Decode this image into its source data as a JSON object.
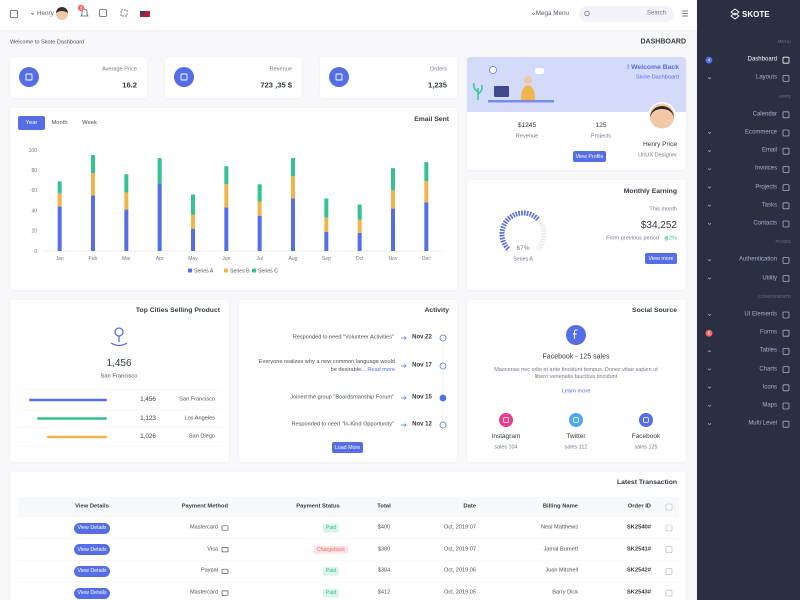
{
  "topbar": {
    "user": "Henry",
    "notifications": "3",
    "mega_menu": "Mega Menu",
    "search_placeholder": ".Search"
  },
  "sidebar": {
    "logo": "SKOTE",
    "sections": [
      {
        "title": "MENU",
        "items": [
          {
            "label": "Dashboard",
            "active": true,
            "badge": "4",
            "badge_color": "#556ee6"
          },
          {
            "label": "Layouts",
            "submenu": true
          }
        ]
      },
      {
        "title": "APPS",
        "items": [
          {
            "label": "Calendar"
          },
          {
            "label": "Ecommerce",
            "submenu": true
          },
          {
            "label": "Email",
            "submenu": true
          },
          {
            "label": "Invoices",
            "submenu": true
          },
          {
            "label": "Projects",
            "submenu": true
          },
          {
            "label": "Tasks",
            "submenu": true
          },
          {
            "label": "Contacts",
            "submenu": true
          }
        ]
      },
      {
        "title": "PAGES",
        "items": [
          {
            "label": "Authentication",
            "submenu": true
          },
          {
            "label": "Utility",
            "submenu": true
          }
        ]
      },
      {
        "title": "COMPONENTS",
        "items": [
          {
            "label": "UI Elements",
            "submenu": true
          },
          {
            "label": "Forms",
            "badge": "6",
            "badge_color": "#f46a6a"
          },
          {
            "label": "Tables",
            "submenu": true
          },
          {
            "label": "Charts",
            "submenu": true
          },
          {
            "label": "Icons",
            "submenu": true
          },
          {
            "label": "Maps",
            "submenu": true
          },
          {
            "label": "Multi Level",
            "submenu": true
          }
        ]
      }
    ]
  },
  "breadcrumb": {
    "text": "Welcome to Skote Dashboard",
    "title": "DASHBOARD"
  },
  "stats": [
    {
      "label": "Average Price",
      "value": "16.2"
    },
    {
      "label": "Revenue",
      "value": "723 ,35 $"
    },
    {
      "label": "Orders",
      "value": "1,235"
    }
  ],
  "welcome": {
    "greeting": "! Welcome Back",
    "subtitle": "Skote Dashboard",
    "figures": [
      {
        "value": "$1245",
        "label": "Revenue"
      },
      {
        "value": "125",
        "label": "Projects"
      }
    ],
    "name": "Henry Price",
    "role": "UI/UX Designer",
    "button": "View Profile"
  },
  "earning": {
    "title": "Monthly Earning",
    "period": "This month",
    "amount": "$34,252",
    "compare": "From previous period",
    "change": "12%",
    "button": "View more"
  },
  "email_tabs": [
    "Year",
    "Month",
    "Week"
  ],
  "chart_data": [
    {
      "type": "bar",
      "stacked": true,
      "title": "Email Sent",
      "categories": [
        "Jan",
        "Feb",
        "Mar",
        "Apr",
        "May",
        "Jun",
        "Jul",
        "Aug",
        "Sep",
        "Oct",
        "Nov",
        "Dec"
      ],
      "series": [
        {
          "name": "Series A",
          "color": "#556ee6",
          "values": [
            44,
            55,
            41,
            67,
            22,
            43,
            35,
            52,
            19,
            18,
            42,
            48
          ]
        },
        {
          "name": "Series B",
          "color": "#f1b44c",
          "values": [
            13,
            22,
            17,
            0,
            14,
            23,
            14,
            22,
            14,
            13,
            18,
            21
          ]
        },
        {
          "name": "Series C",
          "color": "#34c38f",
          "values": [
            12,
            18,
            18,
            25,
            20,
            18,
            17,
            18,
            19,
            15,
            22,
            19
          ]
        }
      ],
      "ylim": [
        0,
        100
      ],
      "yticks": [
        0,
        20,
        40,
        60,
        80,
        100
      ],
      "grid": false,
      "legend": "bottom"
    },
    {
      "type": "radialBar",
      "categories": [
        "Series A"
      ],
      "values": [
        67
      ],
      "value_labels": [
        "67%"
      ],
      "color": "#556ee6",
      "ylim": [
        0,
        100
      ]
    }
  ],
  "top_cities": {
    "title": "Top Cities Selling Product",
    "highlight_value": "1,456",
    "highlight_city": "San Francisco",
    "rows": [
      {
        "value": "1,456",
        "city": "San Francisco",
        "color": "#556ee6"
      },
      {
        "value": "1,123",
        "city": "Los Angeles",
        "color": "#34c38f"
      },
      {
        "value": "1,026",
        "city": "San Diego",
        "color": "#f1b44c"
      }
    ]
  },
  "activity": {
    "title": "Activity",
    "items": [
      {
        "text": "Responded to need \"Volunteer Activities\"",
        "date": "Nov 22"
      },
      {
        "text": "Everyone realizes why a new common language would be desirable...",
        "more": "Read more",
        "date": "Nov 17"
      },
      {
        "text": "Joined the group \"Boardsmanship Forum\"",
        "date": "Nov 15"
      },
      {
        "text": "Responded to need \"In-Kind Opportunity\"",
        "date": "Nov 12"
      }
    ],
    "button": "Load More"
  },
  "social": {
    "title": "Social Source",
    "headline": "Facebook - 125 sales",
    "description": "Maecenas nec odio et ante tincidunt tempus. Donec vitae sapien ut libero venenatis faucibus tincidunt",
    "link": "Learn more",
    "sources": [
      {
        "name": "Instagram",
        "sales": "sales 104",
        "color": "#e83e8c"
      },
      {
        "name": "Twitter",
        "sales": "sales 112",
        "color": "#50a5f1"
      },
      {
        "name": "Facebook",
        "sales": "sales 125",
        "color": "#556ee6"
      }
    ]
  },
  "transactions": {
    "title": "Latest Transaction",
    "columns": [
      "View Details",
      "Payment Method",
      "Payment Status",
      "Total",
      "Date",
      "Billing Name",
      "Order ID"
    ],
    "rows": [
      {
        "details": "View Details",
        "method": "Mastercard",
        "status": "Paid",
        "status_color": "#34c38f",
        "total": "$400",
        "date": "Oct, 2019 07",
        "name": "Neal Matthews",
        "id": "SK2540#"
      },
      {
        "details": "View Details",
        "method": "Visa",
        "status": "Chargeback",
        "status_color": "#f46a6a",
        "total": "$380",
        "date": "Oct, 2019 07",
        "name": "Jamal Burnett",
        "id": "SK2541#"
      },
      {
        "details": "View Details",
        "method": "Paypal",
        "status": "Paid",
        "status_color": "#34c38f",
        "total": "$384",
        "date": "Oct, 2019 06",
        "name": "Juan Mitchell",
        "id": "SK2542#"
      },
      {
        "details": "View Details",
        "method": "Mastercard",
        "status": "Paid",
        "status_color": "#34c38f",
        "total": "$412",
        "date": "Oct, 2019 05",
        "name": "Barry Dick",
        "id": "SK2543#"
      }
    ]
  }
}
